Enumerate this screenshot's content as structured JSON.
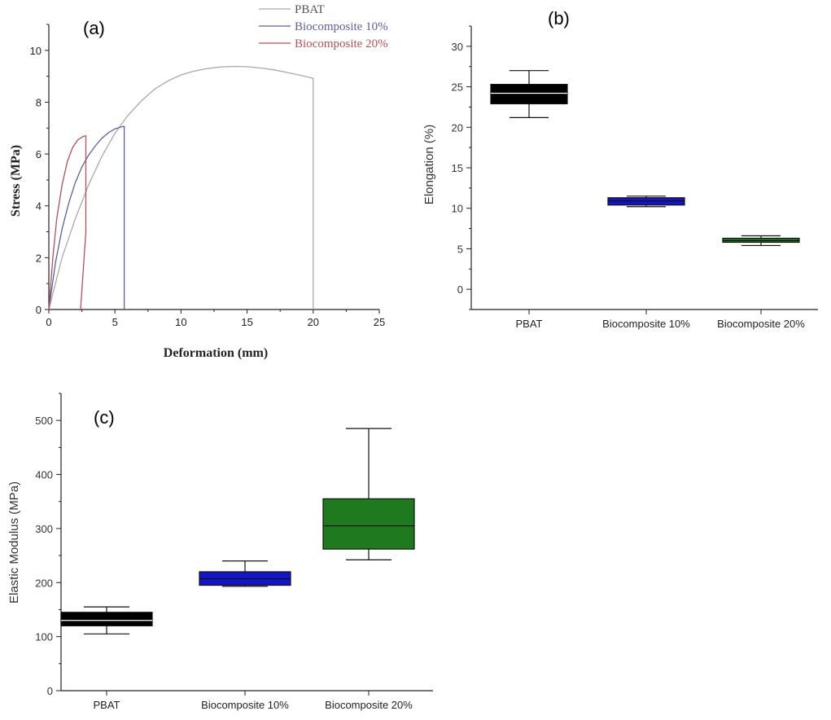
{
  "chart_data": [
    {
      "id": "a",
      "type": "line",
      "panel_label": "(a)",
      "xlabel": "Deformation (mm)",
      "ylabel": "Stress (MPa)",
      "xlim": [
        0,
        25
      ],
      "ylim": [
        0,
        11
      ],
      "xticks": [
        0,
        5,
        10,
        15,
        20,
        25
      ],
      "yticks": [
        0,
        2,
        4,
        6,
        8,
        10
      ],
      "legend_position": "top-right",
      "series": [
        {
          "name": "PBAT",
          "color": "#a9a9a9",
          "points": [
            [
              0,
              0
            ],
            [
              1,
              2.0
            ],
            [
              2,
              3.5
            ],
            [
              3,
              4.8
            ],
            [
              4,
              5.9
            ],
            [
              5,
              6.8
            ],
            [
              6,
              7.5
            ],
            [
              7,
              8.05
            ],
            [
              8,
              8.5
            ],
            [
              9,
              8.82
            ],
            [
              10,
              9.05
            ],
            [
              11,
              9.2
            ],
            [
              12,
              9.3
            ],
            [
              13,
              9.36
            ],
            [
              14,
              9.38
            ],
            [
              15,
              9.37
            ],
            [
              16,
              9.32
            ],
            [
              17,
              9.25
            ],
            [
              18,
              9.15
            ],
            [
              19,
              9.04
            ],
            [
              20,
              8.92
            ],
            [
              20,
              0
            ]
          ]
        },
        {
          "name": "Biocomposite 10%",
          "color": "#5b5f9c",
          "points": [
            [
              0,
              0
            ],
            [
              0.5,
              1.8
            ],
            [
              1,
              3.1
            ],
            [
              1.5,
              4.1
            ],
            [
              2,
              4.9
            ],
            [
              2.5,
              5.5
            ],
            [
              3,
              5.95
            ],
            [
              3.5,
              6.3
            ],
            [
              4,
              6.6
            ],
            [
              4.5,
              6.82
            ],
            [
              5,
              6.97
            ],
            [
              5.5,
              7.05
            ],
            [
              5.7,
              7.07
            ],
            [
              5.7,
              0
            ]
          ]
        },
        {
          "name": "Biocomposite 20%",
          "color": "#b5505a",
          "points": [
            [
              0,
              0
            ],
            [
              0.3,
              2.0
            ],
            [
              0.6,
              3.5
            ],
            [
              1,
              4.8
            ],
            [
              1.4,
              5.7
            ],
            [
              1.8,
              6.25
            ],
            [
              2.2,
              6.55
            ],
            [
              2.6,
              6.68
            ],
            [
              2.8,
              6.7
            ],
            [
              2.8,
              3.0
            ],
            [
              2.4,
              0
            ]
          ]
        }
      ]
    },
    {
      "id": "b",
      "type": "box",
      "panel_label": "(b)",
      "xlabel": "",
      "ylabel": "Elongation (%)",
      "ylim": [
        -2.5,
        32.5
      ],
      "yticks": [
        0,
        5,
        10,
        15,
        20,
        25,
        30
      ],
      "categories": [
        "PBAT",
        "Biocomposite 10%",
        "Biocomposite 20%"
      ],
      "boxes": [
        {
          "category": "PBAT",
          "min": 21.2,
          "q1": 22.9,
          "median": 24.2,
          "q3": 25.3,
          "max": 27.0,
          "color": "#000000"
        },
        {
          "category": "Biocomposite 10%",
          "min": 10.2,
          "q1": 10.4,
          "median": 10.9,
          "q3": 11.3,
          "max": 11.5,
          "color": "#1515c8"
        },
        {
          "category": "Biocomposite 20%",
          "min": 5.4,
          "q1": 5.8,
          "median": 6.0,
          "q3": 6.3,
          "max": 6.6,
          "color": "#1f7a1f"
        }
      ]
    },
    {
      "id": "c",
      "type": "box",
      "panel_label": "(c)",
      "xlabel": "",
      "ylabel": "Elastic Modulus (MPa)",
      "ylim": [
        0,
        550
      ],
      "yticks": [
        0,
        100,
        200,
        300,
        400,
        500
      ],
      "categories": [
        "PBAT",
        "Biocomposite 10%",
        "Biocomposite 20%"
      ],
      "boxes": [
        {
          "category": "PBAT",
          "min": 105,
          "q1": 120,
          "median": 130,
          "q3": 145,
          "max": 155,
          "color": "#000000"
        },
        {
          "category": "Biocomposite 10%",
          "min": 193,
          "q1": 195,
          "median": 207,
          "q3": 220,
          "max": 240,
          "color": "#1515c8"
        },
        {
          "category": "Biocomposite 20%",
          "min": 242,
          "q1": 262,
          "median": 305,
          "q3": 355,
          "max": 485,
          "color": "#1f7a1f"
        }
      ]
    }
  ]
}
